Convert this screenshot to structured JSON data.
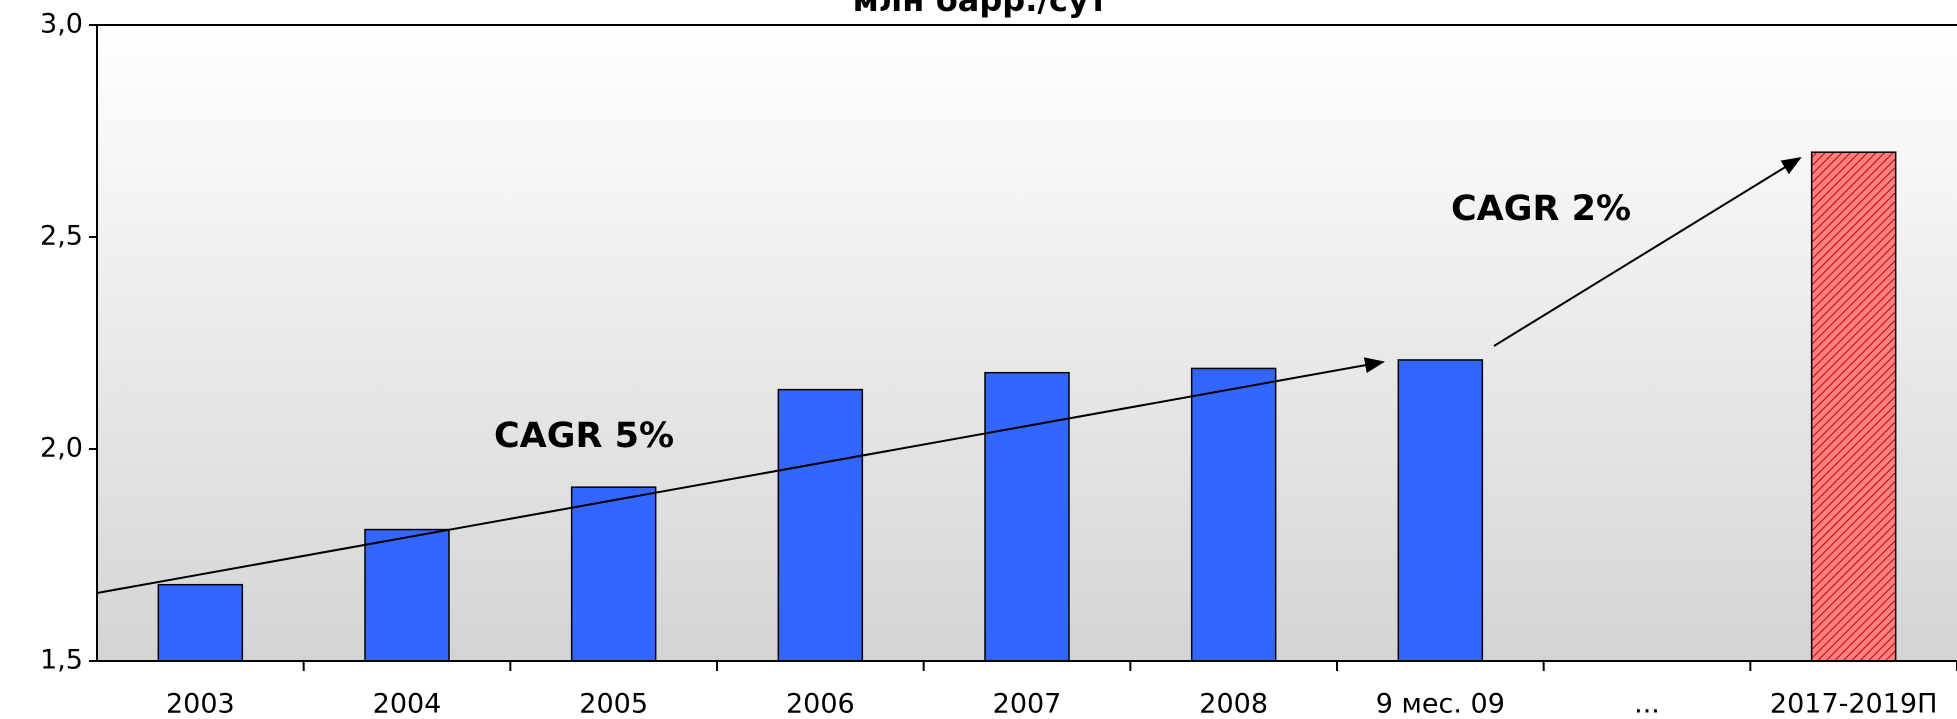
{
  "chart_data": {
    "type": "bar",
    "title": "млн барр./сут",
    "categories": [
      "2003",
      "2004",
      "2005",
      "2006",
      "2007",
      "2008",
      "9 мес. 09",
      "...",
      "2017-2019П"
    ],
    "values": [
      1.68,
      1.81,
      1.91,
      2.14,
      2.18,
      2.19,
      2.21,
      null,
      2.7
    ],
    "colors": [
      "#3366ff",
      "#3366ff",
      "#3366ff",
      "#3366ff",
      "#3366ff",
      "#3366ff",
      "#3366ff",
      null,
      "#ff5a5a"
    ],
    "hatched": [
      false,
      false,
      false,
      false,
      false,
      false,
      false,
      false,
      true
    ],
    "ylim": [
      1.5,
      3.0
    ],
    "yticks": [
      {
        "value": 1.5,
        "label": "1,5"
      },
      {
        "value": 2.0,
        "label": "2,0"
      },
      {
        "value": 2.5,
        "label": "2,5"
      },
      {
        "value": 3.0,
        "label": "3,0"
      }
    ],
    "annotations": [
      "CAGR 5%",
      "CAGR 2%"
    ]
  }
}
